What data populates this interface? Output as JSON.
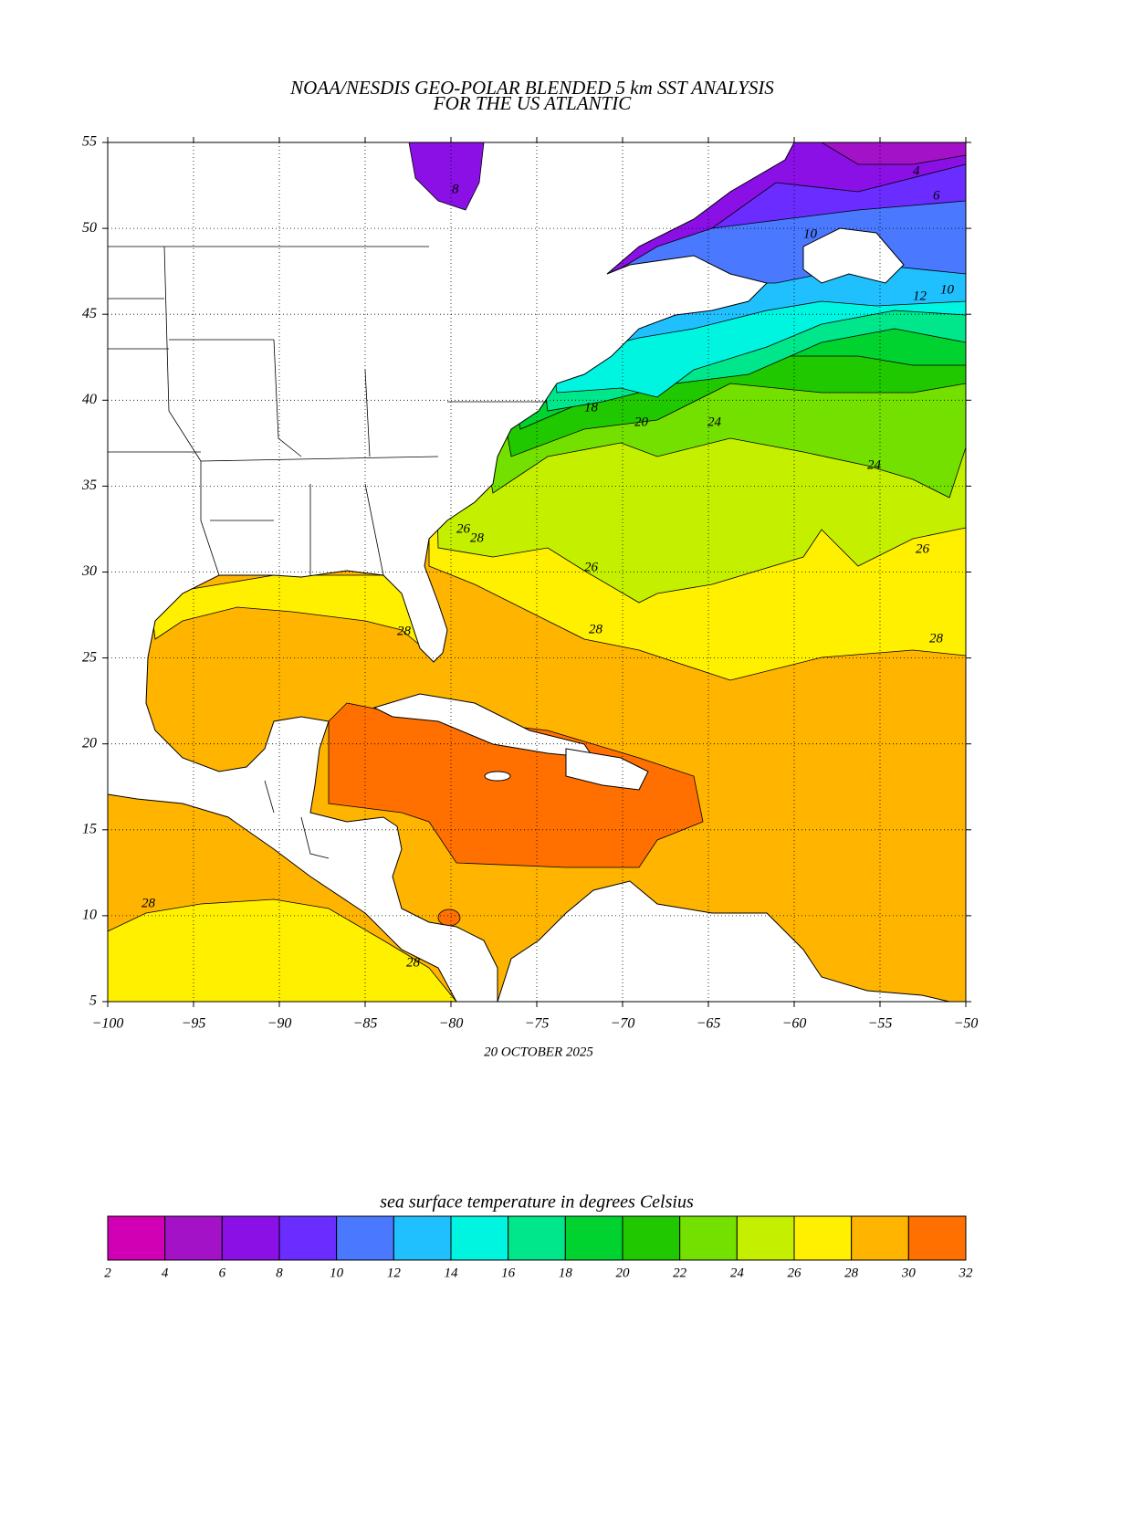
{
  "chart_data": {
    "type": "map",
    "title": "NOAA/NESDIS GEO-POLAR BLENDED 5 km SST ANALYSIS",
    "subtitle": "FOR THE US ATLANTIC",
    "date": "20 OCTOBER 2025",
    "xlim": [
      -100,
      -50
    ],
    "ylim": [
      5,
      55
    ],
    "xticks": [
      {
        "value": -100,
        "label": "−100"
      },
      {
        "value": -95,
        "label": "−95"
      },
      {
        "value": -90,
        "label": "−90"
      },
      {
        "value": -85,
        "label": "−85"
      },
      {
        "value": -80,
        "label": "−80"
      },
      {
        "value": -75,
        "label": "−75"
      },
      {
        "value": -70,
        "label": "−70"
      },
      {
        "value": -65,
        "label": "−65"
      },
      {
        "value": -60,
        "label": "−60"
      },
      {
        "value": -55,
        "label": "−55"
      },
      {
        "value": -50,
        "label": "−50"
      }
    ],
    "yticks": [
      5,
      10,
      15,
      20,
      25,
      30,
      35,
      40,
      45,
      50,
      55
    ],
    "grid": true,
    "colorbar": {
      "title": "sea surface temperature in degrees Celsius",
      "bounds": [
        2,
        4,
        6,
        8,
        10,
        12,
        14,
        16,
        18,
        20,
        22,
        24,
        26,
        28,
        30,
        32
      ],
      "colors": [
        "#d200b4",
        "#a412c8",
        "#8a10e6",
        "#6a2cff",
        "#4a78ff",
        "#20c0ff",
        "#00f5e0",
        "#00e68a",
        "#00d230",
        "#20c800",
        "#74e000",
        "#c4f000",
        "#fff000",
        "#ffb400",
        "#ff7000"
      ]
    },
    "contour_labels": [
      8,
      4,
      6,
      10,
      12,
      10,
      18,
      20,
      24,
      24,
      26,
      28,
      26,
      26,
      28,
      28,
      28,
      28,
      28
    ]
  }
}
